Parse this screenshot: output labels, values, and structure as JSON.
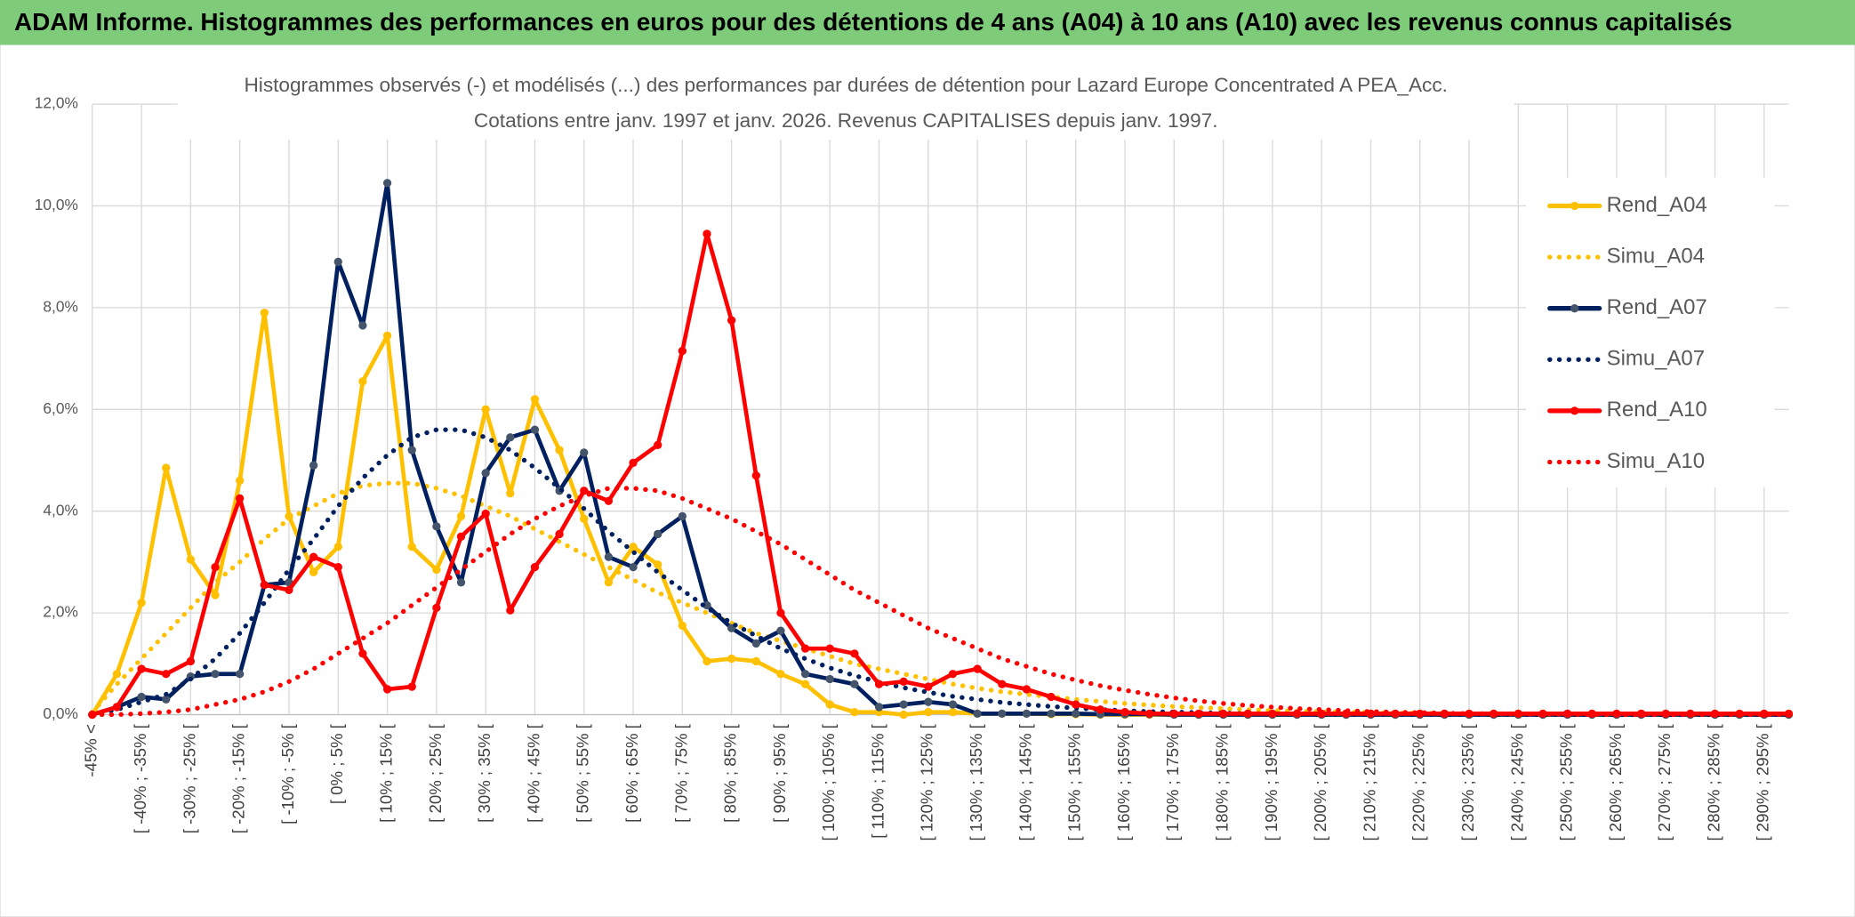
{
  "chart_data": {
    "type": "line",
    "banner": "ADAM Informe. Histogrammes des performances en euros pour des détentions de 4 ans (A04) à 10 ans (A10) avec les revenus connus capitalisés",
    "title": "Histogrammes observés (-) et modélisés (...) des performances par durées de détention pour Lazard Europe Concentrated A PEA_Acc.",
    "subtitle": "Cotations entre janv. 1997 et janv. 2026. Revenus CAPITALISES depuis janv. 1997.",
    "categories": [
      "-45% <",
      null,
      "[ -40% ; -35% [",
      null,
      "[ -30% ; -25% [",
      null,
      "[ -20% ; -15% [",
      null,
      "[ -10% ; -5% [",
      null,
      "[ 0% ; 5% [",
      null,
      "[ 10% ; 15% [",
      null,
      "[ 20% ; 25% [",
      null,
      "[ 30% ; 35% [",
      null,
      "[ 40% ; 45% [",
      null,
      "[ 50% ; 55% [",
      null,
      "[ 60% ; 65% [",
      null,
      "[ 70% ; 75% [",
      null,
      "[ 80% ; 85% [",
      null,
      "[ 90% ; 95% [",
      null,
      "[ 100% ; 105% [",
      null,
      "[ 110% ; 115% [",
      null,
      "[ 120% ; 125% [",
      null,
      "[ 130% ; 135% [",
      null,
      "[ 140% ; 145% [",
      null,
      "[ 150% ; 155% [",
      null,
      "[ 160% ; 165% [",
      null,
      "[ 170% ; 175% [",
      null,
      "[ 180% ; 185% [",
      null,
      "[ 190% ; 195% [",
      null,
      "[ 200% ; 205% [",
      null,
      "[ 210% ; 215% [",
      null,
      "[ 220% ; 225% [",
      null,
      "[ 230% ; 235% [",
      null,
      "[ 240% ; 245% [",
      null,
      "[ 250% ; 255% [",
      null,
      "[ 260% ; 265% [",
      null,
      "[ 270% ; 275% [",
      null,
      "[ 280% ; 285% [",
      null,
      "[ 290% ; 295% [",
      null
    ],
    "series": [
      {
        "name": "Rend_A04",
        "color": "#ffc000",
        "dash": "solid",
        "values": [
          0,
          0.8,
          2.2,
          4.85,
          3.05,
          2.35,
          4.6,
          7.9,
          3.9,
          2.8,
          3.3,
          6.55,
          7.45,
          3.3,
          2.85,
          3.9,
          6.0,
          4.35,
          6.2,
          5.2,
          3.85,
          2.6,
          3.3,
          2.95,
          1.75,
          1.05,
          1.1,
          1.05,
          0.8,
          0.6,
          0.2,
          0.05,
          0.05,
          0,
          0.05,
          0.05,
          0.02,
          0.02,
          0.02,
          0.01,
          0.01,
          0,
          0,
          0,
          0,
          0,
          0,
          0,
          0,
          0,
          0,
          0,
          0,
          0,
          0,
          0,
          0,
          0,
          0,
          0,
          0,
          0,
          0,
          0,
          0,
          0,
          0,
          0,
          0,
          0
        ]
      },
      {
        "name": "Simu_A04",
        "color": "#ffc000",
        "dash": "dotted",
        "values": [
          0.05,
          0.6,
          1.1,
          1.6,
          2.1,
          2.6,
          3.0,
          3.45,
          3.85,
          4.1,
          4.35,
          4.5,
          4.55,
          4.55,
          4.45,
          4.3,
          4.1,
          3.9,
          3.65,
          3.4,
          3.15,
          2.9,
          2.65,
          2.4,
          2.2,
          2.0,
          1.8,
          1.6,
          1.45,
          1.3,
          1.15,
          1.0,
          0.9,
          0.8,
          0.7,
          0.6,
          0.52,
          0.45,
          0.4,
          0.35,
          0.3,
          0.26,
          0.22,
          0.19,
          0.16,
          0.14,
          0.12,
          0.1,
          0.08,
          0.07,
          0.06,
          0.05,
          0.04,
          0.03,
          0.03,
          0.02,
          0.02,
          0.02,
          0.01,
          0.01,
          0.01,
          0.01,
          0,
          0,
          0,
          0,
          0,
          0,
          0,
          0
        ]
      },
      {
        "name": "Rend_A07",
        "color": "#002060",
        "dash": "solid",
        "values": [
          0,
          0.15,
          0.35,
          0.3,
          0.75,
          0.8,
          0.8,
          2.55,
          2.6,
          4.9,
          8.9,
          7.65,
          10.45,
          5.2,
          3.7,
          2.6,
          4.75,
          5.45,
          5.6,
          4.4,
          5.15,
          3.1,
          2.9,
          3.55,
          3.9,
          2.15,
          1.7,
          1.4,
          1.65,
          0.8,
          0.7,
          0.6,
          0.15,
          0.2,
          0.25,
          0.2,
          0.02,
          0.02,
          0.02,
          0.02,
          0.02,
          0.01,
          0.01,
          0.01,
          0,
          0,
          0,
          0,
          0,
          0,
          0,
          0,
          0,
          0,
          0,
          0,
          0,
          0,
          0,
          0,
          0,
          0,
          0,
          0,
          0,
          0,
          0,
          0,
          0,
          0
        ]
      },
      {
        "name": "Simu_A07",
        "color": "#002060",
        "dash": "dotted",
        "values": [
          0,
          0.1,
          0.25,
          0.4,
          0.7,
          1.1,
          1.6,
          2.2,
          2.85,
          3.45,
          4.1,
          4.65,
          5.1,
          5.45,
          5.6,
          5.6,
          5.45,
          5.2,
          4.85,
          4.45,
          4.05,
          3.6,
          3.2,
          2.8,
          2.45,
          2.1,
          1.8,
          1.55,
          1.3,
          1.1,
          0.92,
          0.77,
          0.64,
          0.53,
          0.44,
          0.36,
          0.3,
          0.24,
          0.2,
          0.16,
          0.13,
          0.1,
          0.08,
          0.06,
          0.05,
          0.04,
          0.03,
          0.02,
          0.02,
          0.01,
          0,
          0,
          0,
          0,
          0,
          0,
          0,
          0,
          0,
          0,
          0,
          0,
          0,
          0,
          0,
          0,
          0,
          0,
          0,
          0
        ]
      },
      {
        "name": "Rend_A10",
        "color": "#ff0000",
        "dash": "solid",
        "values": [
          0,
          0.15,
          0.9,
          0.8,
          1.05,
          2.9,
          4.25,
          2.55,
          2.45,
          3.1,
          2.9,
          1.2,
          0.5,
          0.55,
          2.1,
          3.5,
          3.95,
          2.05,
          2.9,
          3.55,
          4.4,
          4.2,
          4.95,
          5.3,
          7.15,
          9.45,
          7.75,
          4.7,
          2.0,
          1.3,
          1.3,
          1.2,
          0.6,
          0.65,
          0.55,
          0.8,
          0.9,
          0.6,
          0.5,
          0.35,
          0.2,
          0.1,
          0.05,
          0.02,
          0.02,
          0.02,
          0.02,
          0.02,
          0.02,
          0.02,
          0.02,
          0.02,
          0.02,
          0.02,
          0.02,
          0.02,
          0.02,
          0.02,
          0.02,
          0.02,
          0.02,
          0.02,
          0.02,
          0.02,
          0.02,
          0.02,
          0.02,
          0.02,
          0.02,
          0.02
        ]
      },
      {
        "name": "Simu_A10",
        "color": "#ff0000",
        "dash": "dotted",
        "values": [
          0,
          0,
          0.02,
          0.05,
          0.1,
          0.2,
          0.3,
          0.45,
          0.65,
          0.9,
          1.2,
          1.5,
          1.8,
          2.15,
          2.5,
          2.85,
          3.2,
          3.55,
          3.85,
          4.1,
          4.3,
          4.45,
          4.45,
          4.4,
          4.25,
          4.05,
          3.85,
          3.6,
          3.35,
          3.05,
          2.75,
          2.45,
          2.2,
          1.95,
          1.7,
          1.5,
          1.3,
          1.1,
          0.95,
          0.8,
          0.68,
          0.57,
          0.48,
          0.4,
          0.33,
          0.27,
          0.22,
          0.18,
          0.15,
          0.12,
          0.1,
          0.08,
          0.06,
          0.05,
          0.04,
          0.03,
          0.02,
          0.02,
          0.01,
          0.01,
          0.01,
          0,
          0,
          0,
          0,
          0,
          0,
          0,
          0,
          0
        ]
      }
    ],
    "ylim": [
      0,
      12
    ],
    "yticks": [
      {
        "value": 0,
        "label": "0,0%"
      },
      {
        "value": 2,
        "label": "2,0%"
      },
      {
        "value": 4,
        "label": "4,0%"
      },
      {
        "value": 6,
        "label": "6,0%"
      },
      {
        "value": 8,
        "label": "8,0%"
      },
      {
        "value": 10,
        "label": "10,0%"
      },
      {
        "value": 12,
        "label": "12,0%"
      }
    ],
    "grid": true,
    "legend": "right"
  }
}
